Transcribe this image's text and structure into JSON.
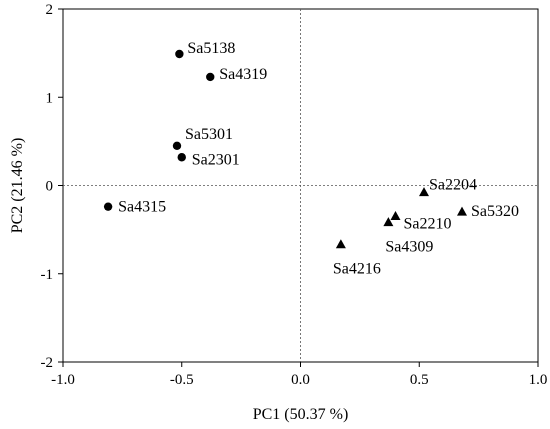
{
  "chart_data": {
    "type": "scatter",
    "xlabel": "PC1 (50.37 %)",
    "ylabel": "PC2 (21.46 %)",
    "xlim": [
      -1.0,
      1.0
    ],
    "ylim": [
      -2,
      2
    ],
    "x_ticks": [
      "-1.0",
      "-0.5",
      "0.0",
      "0.5",
      "1.0"
    ],
    "y_ticks": [
      "-2",
      "-1",
      "0",
      "1",
      "2"
    ],
    "grid": false,
    "reference_lines": [
      {
        "axis": "x",
        "value": 0
      },
      {
        "axis": "y",
        "value": 0
      }
    ],
    "series": [
      {
        "marker": "circle",
        "points": [
          {
            "label": "Sa5138",
            "x": -0.51,
            "y": 1.49
          },
          {
            "label": "Sa4319",
            "x": -0.38,
            "y": 1.23
          },
          {
            "label": "Sa5301",
            "x": -0.52,
            "y": 0.45
          },
          {
            "label": "Sa2301",
            "x": -0.5,
            "y": 0.32
          },
          {
            "label": "Sa4315",
            "x": -0.81,
            "y": -0.24
          }
        ]
      },
      {
        "marker": "triangle",
        "points": [
          {
            "label": "Sa2204",
            "x": 0.52,
            "y": -0.08
          },
          {
            "label": "Sa5320",
            "x": 0.68,
            "y": -0.3
          },
          {
            "label": "Sa2210",
            "x": 0.4,
            "y": -0.35
          },
          {
            "label": "Sa4309",
            "x": 0.37,
            "y": -0.42
          },
          {
            "label": "Sa4216",
            "x": 0.17,
            "y": -0.67
          }
        ]
      }
    ]
  }
}
